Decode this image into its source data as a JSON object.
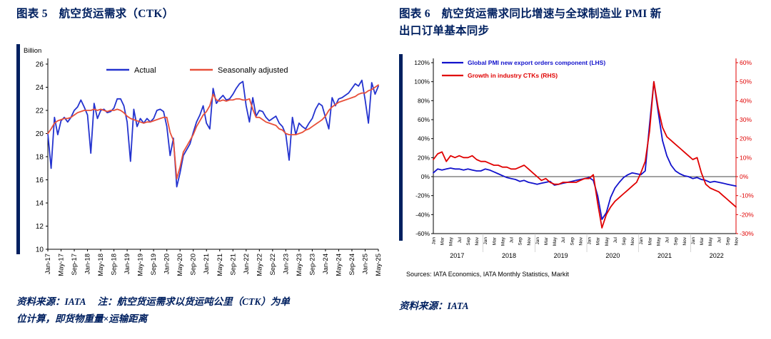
{
  "accent_color": "#002060",
  "left_panel": {
    "title": "图表 5　航空货运需求（CTK）",
    "source_note_line1": "资料来源：IATA　 注：航空货运需求以货运吨公里（CTK）为单",
    "source_note_line2": "位计算，即货物重量×运输距离"
  },
  "right_panel": {
    "title_line1": "图表 6　航空货运需求同比增速与全球制造业 PMI 新",
    "title_line2": "出口订单基本同步",
    "source_note": "资料来源：IATA"
  },
  "chart_data": [
    {
      "type": "line",
      "title": "航空货运需求（CTK）",
      "ylabel": "Billion",
      "ylim": [
        10,
        26
      ],
      "ytick_step": 2,
      "x_tick_every": 4,
      "x_tick_labels": [
        "Jan-17",
        "May-17",
        "Sep-17",
        "Jan-18",
        "May-18",
        "Sep-18",
        "Jan-19",
        "May-19",
        "Sep-19",
        "Jan-20",
        "May-20",
        "Sep-20",
        "Jan-21",
        "May-21",
        "Sep-21",
        "Jan-22",
        "May-22",
        "Sep-22",
        "Jan-23",
        "May-23",
        "Sep-23",
        "Jan-24",
        "May-24",
        "Sep-24",
        "Jan-25",
        "May-25"
      ],
      "legend_position": "top",
      "grid": false,
      "series": [
        {
          "name": "Actual",
          "color": "#2433cf",
          "values": [
            20.0,
            17.0,
            21.4,
            19.9,
            21.1,
            21.4,
            21.0,
            21.4,
            22.0,
            22.3,
            22.9,
            22.3,
            21.6,
            18.3,
            22.6,
            21.3,
            22.0,
            22.1,
            21.8,
            21.9,
            22.2,
            23.0,
            23.0,
            22.4,
            21.0,
            17.6,
            22.1,
            20.6,
            21.3,
            20.9,
            21.3,
            21.0,
            21.3,
            22.0,
            22.1,
            21.9,
            20.6,
            18.1,
            19.6,
            15.4,
            16.6,
            18.1,
            18.6,
            19.1,
            20.1,
            21.0,
            21.6,
            22.4,
            20.9,
            20.4,
            23.9,
            22.6,
            23.0,
            23.3,
            22.9,
            23.0,
            23.4,
            23.9,
            24.3,
            24.5,
            22.4,
            21.0,
            23.1,
            21.5,
            22.0,
            21.9,
            21.4,
            21.1,
            21.3,
            21.5,
            20.9,
            20.6,
            19.9,
            17.7,
            21.4,
            19.9,
            20.9,
            20.6,
            20.4,
            20.9,
            21.3,
            22.1,
            22.6,
            22.4,
            21.4,
            20.4,
            23.1,
            22.4,
            23.0,
            23.1,
            23.3,
            23.5,
            23.9,
            24.3,
            24.1,
            24.6,
            22.9,
            20.9,
            24.4,
            23.4,
            24.1
          ]
        },
        {
          "name": "Seasonally adjusted",
          "color": "#e8503a",
          "values": [
            20.0,
            20.4,
            20.9,
            21.1,
            21.2,
            21.3,
            21.3,
            21.4,
            21.6,
            21.8,
            21.9,
            22.0,
            22.0,
            22.0,
            22.1,
            22.0,
            22.1,
            22.0,
            21.9,
            22.0,
            22.0,
            22.1,
            22.0,
            21.8,
            21.5,
            21.3,
            21.2,
            21.1,
            21.0,
            20.9,
            21.0,
            21.0,
            21.1,
            21.2,
            21.3,
            21.4,
            21.4,
            20.1,
            19.4,
            16.1,
            17.1,
            18.4,
            18.9,
            19.4,
            19.9,
            20.6,
            21.1,
            21.6,
            21.9,
            22.4,
            23.4,
            22.9,
            22.8,
            22.9,
            22.8,
            22.9,
            22.9,
            23.0,
            23.0,
            22.9,
            22.9,
            23.0,
            22.1,
            21.4,
            21.4,
            21.2,
            21.0,
            20.9,
            20.8,
            20.7,
            20.4,
            20.3,
            20.0,
            19.9,
            19.9,
            19.9,
            20.0,
            20.1,
            20.3,
            20.4,
            20.6,
            20.8,
            21.0,
            21.2,
            21.5,
            22.0,
            22.3,
            22.5,
            22.7,
            22.8,
            22.9,
            23.0,
            23.1,
            23.2,
            23.4,
            23.5,
            23.5,
            23.7,
            23.8,
            24.0,
            24.2
          ]
        }
      ]
    },
    {
      "type": "line",
      "title": "航空货运需求同比增速与全球制造业PMI新出口订单基本同步",
      "left_axis": {
        "lim": [
          -60,
          120
        ],
        "step": 20,
        "suffix": "%",
        "color": "#000000"
      },
      "right_axis": {
        "lim": [
          -30,
          60
        ],
        "step": 10,
        "suffix": "%",
        "color": "#e00000"
      },
      "years": [
        "2017",
        "2018",
        "2019",
        "2020",
        "2021",
        "2022"
      ],
      "month_tick_labels": [
        "Jan",
        "Mar",
        "May",
        "Jul",
        "Sep",
        "Nov"
      ],
      "source_note": "Sources: IATA Economics, IATA Monthly Statistics, Markit",
      "grid": false,
      "series": [
        {
          "name": "Global PMI new export orders component (LHS)",
          "axis": "left",
          "color": "#1111cc",
          "values": [
            4,
            8,
            7,
            8,
            9,
            8,
            8,
            7,
            8,
            7,
            6,
            6,
            8,
            7,
            5,
            3,
            1,
            -1,
            -2,
            -3,
            -5,
            -4,
            -6,
            -7,
            -8,
            -7,
            -6,
            -5,
            -9,
            -8,
            -7,
            -6,
            -5,
            -4,
            -3,
            -2,
            -1,
            -4,
            -20,
            -45,
            -38,
            -22,
            -12,
            -6,
            -1,
            2,
            4,
            3,
            2,
            6,
            55,
            100,
            68,
            38,
            22,
            12,
            6,
            3,
            1,
            0,
            -2,
            -1,
            -3,
            -4,
            -6,
            -5,
            -6,
            -7,
            -8,
            -9,
            -10
          ]
        },
        {
          "name": "Growth in industry CTKs (RHS)",
          "axis": "right",
          "color": "#e00000",
          "values": [
            9,
            12,
            13,
            8,
            11,
            10,
            11,
            10,
            10,
            11,
            9,
            8,
            8,
            7,
            6,
            6,
            5,
            5,
            4,
            4,
            5,
            6,
            4,
            2,
            0,
            -2,
            -1,
            -3,
            -4,
            -4,
            -3,
            -3,
            -3,
            -3,
            -2,
            -1,
            -1,
            1,
            -14,
            -27,
            -20,
            -16,
            -13,
            -11,
            -9,
            -7,
            -5,
            -3,
            2,
            8,
            24,
            50,
            36,
            26,
            21,
            19,
            17,
            15,
            13,
            11,
            9,
            10,
            2,
            -4,
            -6,
            -7,
            -8,
            -10,
            -12,
            -14,
            -16
          ]
        }
      ]
    }
  ]
}
